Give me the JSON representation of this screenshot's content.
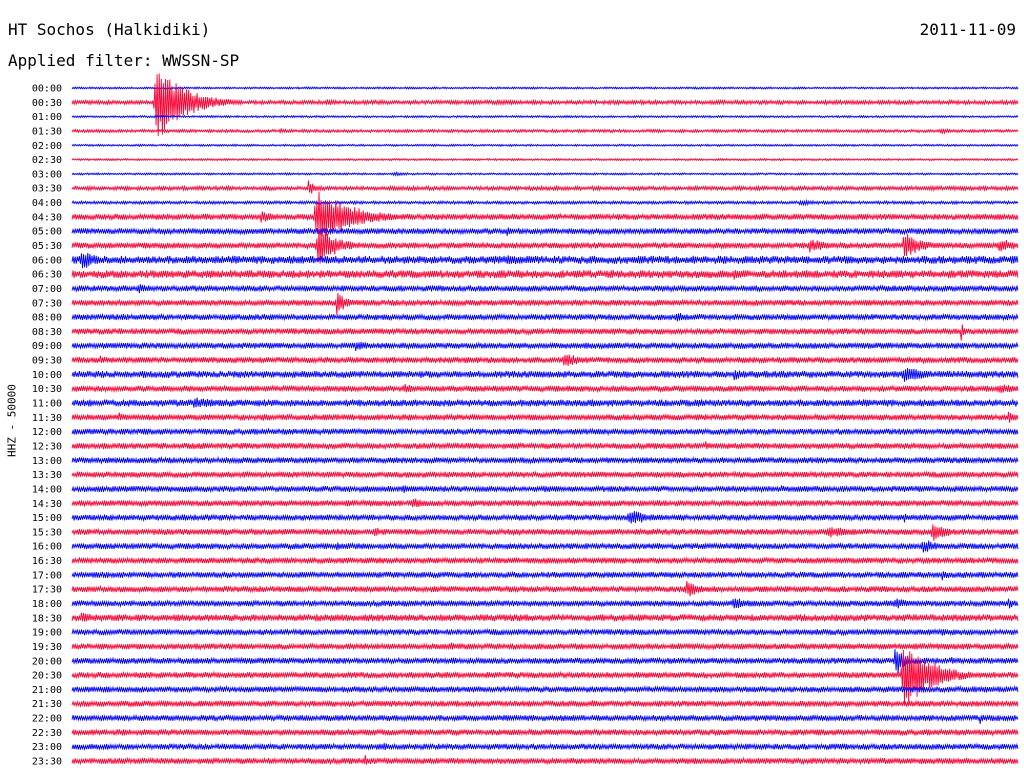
{
  "header": {
    "station": "HT Sochos (Halkidiki)",
    "date": "2011-11-09",
    "filter": "Applied filter: WWSSN-SP"
  },
  "chart_data": {
    "type": "line",
    "title": "HT Sochos (Halkidiki)",
    "subtitle": "Applied filter: WWSSN-SP",
    "ylabel": "HHZ - 50000",
    "xlabel": "",
    "colors": [
      "#0000ff",
      "#ff0033"
    ],
    "rows": [
      {
        "label": "00:00",
        "amp": 1,
        "events": []
      },
      {
        "label": "00:30",
        "amp": 2,
        "events": [
          {
            "x": 0.09,
            "a": 40,
            "w": 0.03
          },
          {
            "x": 0.27,
            "a": 4,
            "w": 0.01
          },
          {
            "x": 0.45,
            "a": 3,
            "w": 0.02
          }
        ]
      },
      {
        "label": "01:00",
        "amp": 1,
        "events": []
      },
      {
        "label": "01:30",
        "amp": 1.5,
        "events": [
          {
            "x": 0.22,
            "a": 3,
            "w": 0.01
          },
          {
            "x": 0.92,
            "a": 3,
            "w": 0.01
          }
        ]
      },
      {
        "label": "02:00",
        "amp": 1,
        "events": []
      },
      {
        "label": "02:30",
        "amp": 1,
        "events": []
      },
      {
        "label": "03:00",
        "amp": 1,
        "events": [
          {
            "x": 0.34,
            "a": 2,
            "w": 0.02
          }
        ]
      },
      {
        "label": "03:30",
        "amp": 2,
        "events": [
          {
            "x": 0.25,
            "a": 8,
            "w": 0.01
          }
        ]
      },
      {
        "label": "04:00",
        "amp": 1.5,
        "events": [
          {
            "x": 0.77,
            "a": 3,
            "w": 0.02
          }
        ]
      },
      {
        "label": "04:30",
        "amp": 3,
        "events": [
          {
            "x": 0.26,
            "a": 30,
            "w": 0.035
          },
          {
            "x": 0.2,
            "a": 6,
            "w": 0.02
          }
        ]
      },
      {
        "label": "05:00",
        "amp": 3,
        "events": [
          {
            "x": 0.46,
            "a": 5,
            "w": 0.01
          }
        ]
      },
      {
        "label": "05:30",
        "amp": 3,
        "events": [
          {
            "x": 0.26,
            "a": 22,
            "w": 0.02
          },
          {
            "x": 0.78,
            "a": 8,
            "w": 0.02
          },
          {
            "x": 0.88,
            "a": 14,
            "w": 0.02
          },
          {
            "x": 0.98,
            "a": 8,
            "w": 0.02
          }
        ]
      },
      {
        "label": "06:00",
        "amp": 4,
        "events": [
          {
            "x": 0.01,
            "a": 12,
            "w": 0.015
          },
          {
            "x": 0.46,
            "a": 6,
            "w": 0.03
          }
        ]
      },
      {
        "label": "06:30",
        "amp": 4,
        "events": [
          {
            "x": 0.7,
            "a": 6,
            "w": 0.02
          }
        ]
      },
      {
        "label": "07:00",
        "amp": 3,
        "events": [
          {
            "x": 0.07,
            "a": 5,
            "w": 0.02
          }
        ]
      },
      {
        "label": "07:30",
        "amp": 3,
        "events": [
          {
            "x": 0.28,
            "a": 14,
            "w": 0.01
          }
        ]
      },
      {
        "label": "08:00",
        "amp": 3,
        "events": [
          {
            "x": 0.64,
            "a": 5,
            "w": 0.02
          }
        ]
      },
      {
        "label": "08:30",
        "amp": 3,
        "events": [
          {
            "x": 0.6,
            "a": 3,
            "w": 0.02
          },
          {
            "x": 0.94,
            "a": 10,
            "w": 0.005
          }
        ]
      },
      {
        "label": "09:00",
        "amp": 3,
        "events": [
          {
            "x": 0.3,
            "a": 6,
            "w": 0.02
          }
        ]
      },
      {
        "label": "09:30",
        "amp": 3,
        "events": [
          {
            "x": 0.52,
            "a": 8,
            "w": 0.02
          },
          {
            "x": 0.03,
            "a": 5,
            "w": 0.005
          }
        ]
      },
      {
        "label": "10:00",
        "amp": 3.5,
        "events": [
          {
            "x": 0.7,
            "a": 6,
            "w": 0.02
          },
          {
            "x": 0.88,
            "a": 8,
            "w": 0.03
          }
        ]
      },
      {
        "label": "10:30",
        "amp": 3,
        "events": [
          {
            "x": 0.35,
            "a": 6,
            "w": 0.015
          },
          {
            "x": 0.98,
            "a": 6,
            "w": 0.02
          }
        ]
      },
      {
        "label": "11:00",
        "amp": 3.5,
        "events": [
          {
            "x": 0.13,
            "a": 6,
            "w": 0.04
          },
          {
            "x": 0.55,
            "a": 4,
            "w": 0.02
          }
        ]
      },
      {
        "label": "11:30",
        "amp": 3,
        "events": [
          {
            "x": 0.05,
            "a": 6,
            "w": 0.01
          },
          {
            "x": 0.2,
            "a": 4,
            "w": 0.02
          },
          {
            "x": 0.99,
            "a": 6,
            "w": 0.01
          }
        ]
      },
      {
        "label": "12:00",
        "amp": 3,
        "events": [
          {
            "x": 0.02,
            "a": 4,
            "w": 0.01
          }
        ]
      },
      {
        "label": "12:30",
        "amp": 3,
        "events": [
          {
            "x": 0.67,
            "a": 5,
            "w": 0.005
          }
        ]
      },
      {
        "label": "13:00",
        "amp": 3,
        "events": [
          {
            "x": 0.72,
            "a": 4,
            "w": 0.01
          }
        ]
      },
      {
        "label": "13:30",
        "amp": 3,
        "events": []
      },
      {
        "label": "14:00",
        "amp": 3,
        "events": [
          {
            "x": 0.35,
            "a": 5,
            "w": 0.01
          },
          {
            "x": 0.5,
            "a": 4,
            "w": 0.03
          },
          {
            "x": 0.75,
            "a": 4,
            "w": 0.02
          }
        ]
      },
      {
        "label": "14:30",
        "amp": 3,
        "events": [
          {
            "x": 0.36,
            "a": 6,
            "w": 0.02
          }
        ]
      },
      {
        "label": "15:00",
        "amp": 3,
        "events": [
          {
            "x": 0.59,
            "a": 8,
            "w": 0.03
          },
          {
            "x": 0.88,
            "a": 5,
            "w": 0.01
          }
        ]
      },
      {
        "label": "15:30",
        "amp": 3,
        "events": [
          {
            "x": 0.32,
            "a": 5,
            "w": 0.02
          },
          {
            "x": 0.8,
            "a": 6,
            "w": 0.04
          },
          {
            "x": 0.91,
            "a": 12,
            "w": 0.015
          }
        ]
      },
      {
        "label": "16:00",
        "amp": 3,
        "events": [
          {
            "x": 0.28,
            "a": 5,
            "w": 0.01
          },
          {
            "x": 0.7,
            "a": 4,
            "w": 0.02
          },
          {
            "x": 0.9,
            "a": 8,
            "w": 0.02
          }
        ]
      },
      {
        "label": "16:30",
        "amp": 3,
        "events": []
      },
      {
        "label": "17:00",
        "amp": 3,
        "events": [
          {
            "x": 0.92,
            "a": 6,
            "w": 0.01
          }
        ]
      },
      {
        "label": "17:30",
        "amp": 3,
        "events": [
          {
            "x": 0.65,
            "a": 10,
            "w": 0.015
          }
        ]
      },
      {
        "label": "18:00",
        "amp": 3,
        "events": [
          {
            "x": 0.7,
            "a": 6,
            "w": 0.03
          },
          {
            "x": 0.87,
            "a": 6,
            "w": 0.02
          },
          {
            "x": 0.99,
            "a": 6,
            "w": 0.01
          }
        ]
      },
      {
        "label": "18:30",
        "amp": 3.5,
        "events": [
          {
            "x": 0.01,
            "a": 6,
            "w": 0.02
          }
        ]
      },
      {
        "label": "19:00",
        "amp": 3,
        "events": [
          {
            "x": 0.92,
            "a": 4,
            "w": 0.02
          }
        ]
      },
      {
        "label": "19:30",
        "amp": 3,
        "events": [
          {
            "x": 0.4,
            "a": 4,
            "w": 0.02
          }
        ]
      },
      {
        "label": "20:00",
        "amp": 3,
        "events": [
          {
            "x": 0.87,
            "a": 20,
            "w": 0.01
          },
          {
            "x": 0.93,
            "a": 4,
            "w": 0.01
          }
        ]
      },
      {
        "label": "20:30",
        "amp": 3,
        "events": [
          {
            "x": 0.88,
            "a": 35,
            "w": 0.03
          }
        ]
      },
      {
        "label": "21:00",
        "amp": 3,
        "events": [
          {
            "x": 0.56,
            "a": 4,
            "w": 0.01
          }
        ]
      },
      {
        "label": "21:30",
        "amp": 3,
        "events": [
          {
            "x": 0.55,
            "a": 4,
            "w": 0.01
          }
        ]
      },
      {
        "label": "22:00",
        "amp": 3,
        "events": [
          {
            "x": 0.96,
            "a": 6,
            "w": 0.005
          }
        ]
      },
      {
        "label": "22:30",
        "amp": 3,
        "events": [
          {
            "x": 0.5,
            "a": 3,
            "w": 0.01
          }
        ]
      },
      {
        "label": "23:00",
        "amp": 3,
        "events": [
          {
            "x": 0.33,
            "a": 4,
            "w": 0.01
          }
        ]
      },
      {
        "label": "23:30",
        "amp": 3,
        "events": [
          {
            "x": 0.31,
            "a": 6,
            "w": 0.005
          }
        ]
      }
    ]
  }
}
